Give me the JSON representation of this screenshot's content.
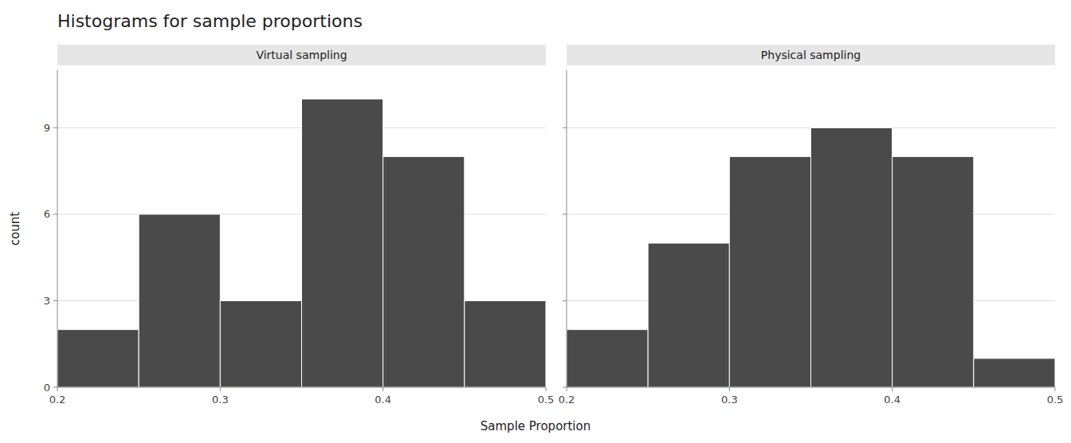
{
  "chart_data": {
    "type": "histogram",
    "title": "Histograms for sample proportions",
    "xlabel": "Sample Proportion",
    "ylabel": "count",
    "bins": [
      0.2,
      0.25,
      0.3,
      0.35,
      0.4,
      0.45,
      0.5
    ],
    "series": [
      {
        "name": "Virtual sampling",
        "values": [
          2,
          6,
          3,
          10,
          8,
          3
        ]
      },
      {
        "name": "Physical sampling",
        "values": [
          2,
          5,
          8,
          9,
          8,
          1
        ]
      }
    ],
    "color": "#4a4a4a",
    "xlim": [
      0.2,
      0.5
    ],
    "xticks": [
      0.2,
      0.3,
      0.4,
      0.5
    ],
    "ylim": [
      0,
      11
    ],
    "yticks": [
      0,
      3,
      6,
      9
    ],
    "grid": true
  }
}
